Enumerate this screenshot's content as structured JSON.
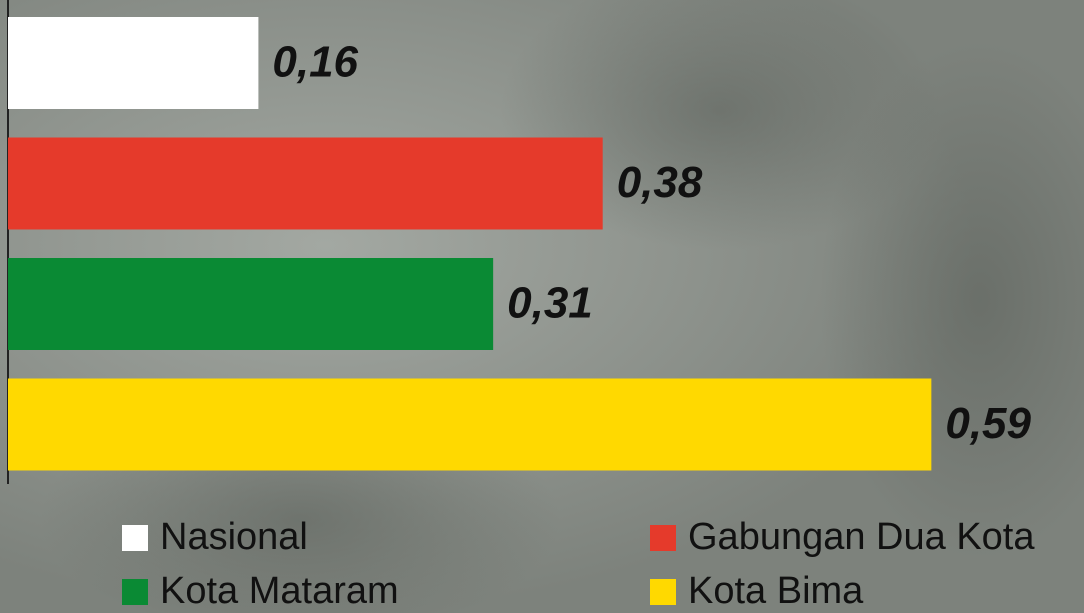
{
  "chart_data": {
    "type": "bar",
    "orientation": "horizontal",
    "categories": [
      "Nasional",
      "Gabungan Dua Kota",
      "Kota Mataram",
      "Kota Bima"
    ],
    "values": [
      0.16,
      0.38,
      0.31,
      0.59
    ],
    "value_labels": [
      "0,16",
      "0,38",
      "0,31",
      "0,59"
    ],
    "colors": [
      "#ffffff",
      "#e53a2b",
      "#0a8a34",
      "#ffd900"
    ]
  }
}
